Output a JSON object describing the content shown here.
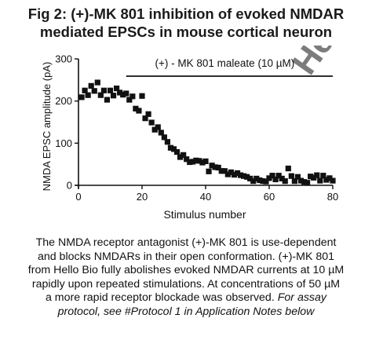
{
  "figure": {
    "title_lines": [
      "Fig 2: (+)-MK 801 inhibition of evoked NMDAR",
      "mediated EPSCs in mouse cortical neuron"
    ],
    "caption_lines": [
      "The NMDA receptor antagonist (+)-MK 801 is use-dependent",
      "and blocks NMDARs in their open conformation. (+)-MK 801",
      "from Hello Bio fully abolishes evoked NMDAR currents at 10 µM",
      "rapidly upon repeated stimulations. At concentrations of 50 µM",
      "a more rapid receptor blockade was observed."
    ],
    "caption_italic_lines": [
      "For assay",
      "protocol, see #Protocol 1 in Application Notes below"
    ],
    "watermark": "Hello Bio",
    "watermark_color": "#cfe8ef"
  },
  "chart_data": {
    "type": "scatter",
    "title": "",
    "xlabel": "Stimulus number",
    "ylabel": "NMDA EPSC amplitude (pA)",
    "xlim": [
      0,
      80
    ],
    "ylim": [
      0,
      300
    ],
    "xticks": [
      0,
      20,
      40,
      60,
      80
    ],
    "yticks": [
      0,
      100,
      200,
      300
    ],
    "grid": false,
    "marker": "square",
    "marker_color": "#111111",
    "annotation": {
      "text": "(+) - MK 801 maleate (10 µM)",
      "x_start": 15,
      "x_end": 80
    },
    "series": [
      {
        "x": [
          1,
          2,
          3,
          4,
          5,
          6,
          7,
          8,
          9,
          10,
          11,
          12,
          13,
          14,
          15,
          16,
          17,
          18,
          19,
          20,
          21,
          22,
          23,
          24,
          25,
          26,
          27,
          28,
          29,
          30,
          31,
          32,
          33,
          34,
          35,
          36,
          37,
          38,
          39,
          40,
          41,
          42,
          43,
          44,
          45,
          46,
          47,
          48,
          49,
          50,
          51,
          52,
          53,
          54,
          55,
          56,
          57,
          58,
          59,
          60,
          61,
          62,
          63,
          64,
          65,
          66,
          67,
          68,
          69,
          70,
          71,
          72,
          73,
          74,
          75,
          76,
          77,
          78,
          79,
          80
        ],
        "y": [
          209,
          225,
          214,
          236,
          224,
          244,
          214,
          225,
          203,
          225,
          213,
          230,
          220,
          215,
          218,
          203,
          211,
          182,
          177,
          212,
          159,
          169,
          149,
          132,
          138,
          125,
          114,
          103,
          89,
          86,
          79,
          67,
          72,
          62,
          55,
          56,
          59,
          58,
          54,
          57,
          33,
          47,
          43,
          42,
          34,
          34,
          26,
          31,
          25,
          29,
          24,
          22,
          20,
          16,
          10,
          16,
          12,
          10,
          9,
          17,
          23,
          14,
          23,
          16,
          10,
          40,
          22,
          10,
          20,
          11,
          8,
          6,
          21,
          18,
          24,
          11,
          23,
          13,
          17,
          11
        ]
      }
    ]
  }
}
